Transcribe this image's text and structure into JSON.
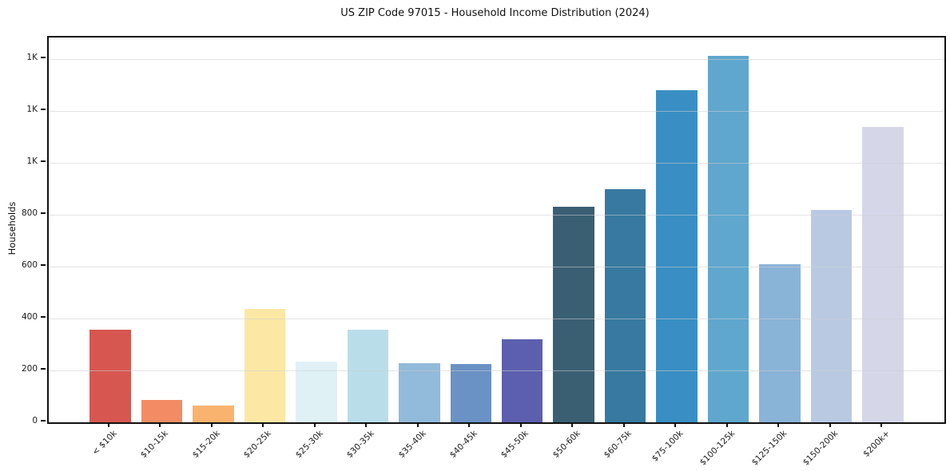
{
  "chart_data": {
    "type": "bar",
    "title": "US ZIP Code 97015 - Household Income Distribution (2024)",
    "xlabel": "",
    "ylabel": "Households",
    "categories": [
      "< $10k",
      "$10-15k",
      "$15-20k",
      "$20-25k",
      "$25-30k",
      "$30-35k",
      "$35-40k",
      "$40-45k",
      "$45-50k",
      "$50-60k",
      "$60-75k",
      "$75-100k",
      "$100-125k",
      "$125-150k",
      "$150-200k",
      "$200k+"
    ],
    "values": [
      357,
      86,
      65,
      437,
      233,
      356,
      228,
      226,
      321,
      831,
      898,
      1280,
      1412,
      608,
      818,
      1138
    ],
    "bar_colors": [
      "#d65750",
      "#f38c65",
      "#fab36e",
      "#fce8a4",
      "#e0f1f6",
      "#badee9",
      "#92badb",
      "#6b92c5",
      "#5c5fae",
      "#3a5f73",
      "#3779a0",
      "#398fc3",
      "#5fa7cd",
      "#8ab3d8",
      "#b9c9e2",
      "#d5d7e9"
    ],
    "ylim": [
      0,
      1483
    ],
    "yticks": [
      0,
      200,
      400,
      600,
      800,
      1000,
      1200,
      1400
    ],
    "ytick_labels": [
      "0",
      "200",
      "400",
      "600",
      "800",
      "1K",
      "1K",
      "1K"
    ],
    "grid": "horizontal-only",
    "legend": "none",
    "axis_color": "#111111",
    "grid_color": "#e9e9ec",
    "background_color": "#ffffff",
    "xtick_rotation_deg": 45
  }
}
